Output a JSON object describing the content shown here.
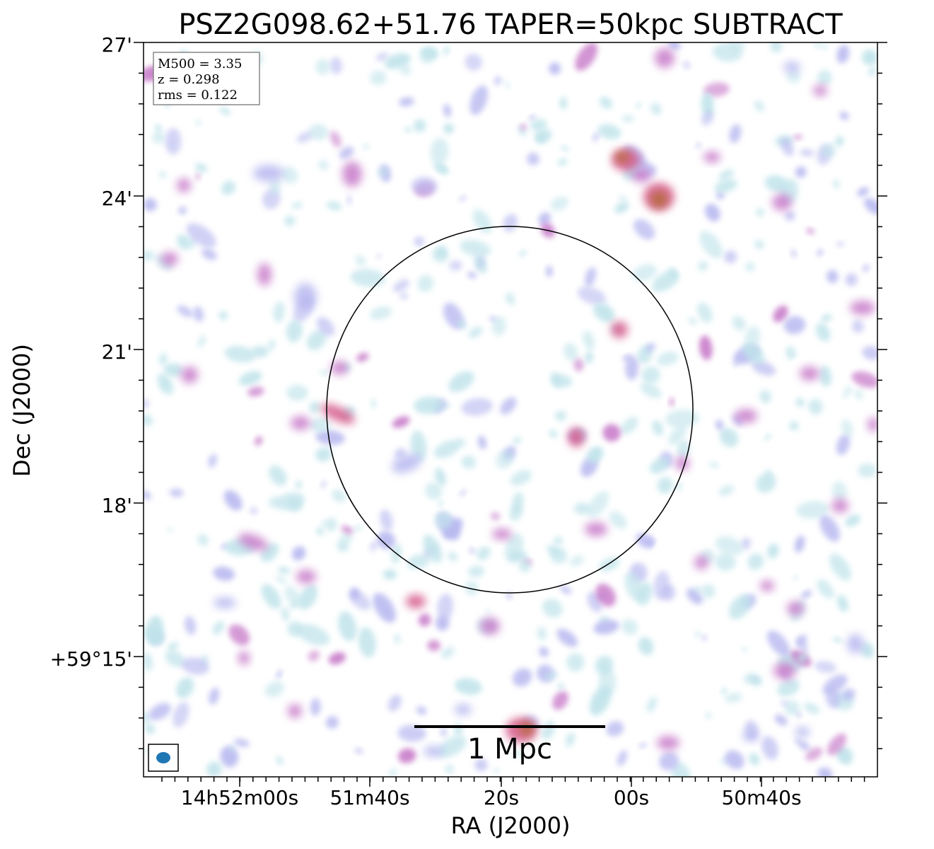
{
  "title": "PSZ2G098.62+51.76 TAPER=50kpc SUBTRACT",
  "xlabel": "RA (J2000)",
  "ylabel": "Dec (J2000)",
  "x_ticks": [
    "14h52m00s",
    "51m40s",
    "20s",
    "00s",
    "50m40s"
  ],
  "y_ticks": [
    "27'",
    "24'",
    "21'",
    "18'",
    "+59°15'"
  ],
  "info": {
    "m500": "M500 = 3.35",
    "z": "z = 0.298",
    "rms": "rms = 0.122"
  },
  "scalebar": {
    "label": "1 Mpc"
  },
  "colors": {
    "faint": "#bfe3ea",
    "low": "#b7b8f0",
    "mid": "#c77ac9",
    "high": "#d55a8a",
    "peak": "#b36a3a",
    "beam": "#1f77b4"
  }
}
